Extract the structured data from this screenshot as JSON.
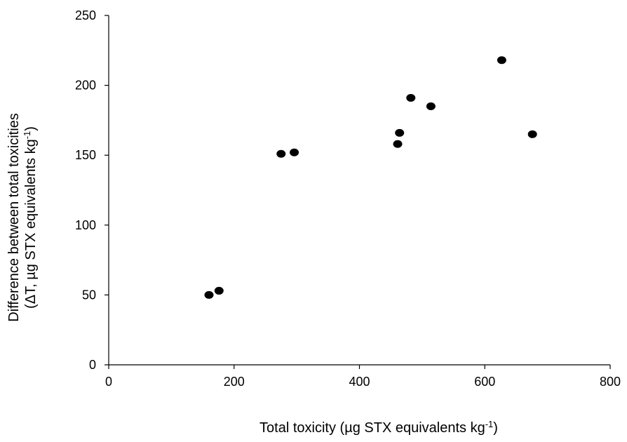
{
  "chart_data": {
    "type": "scatter",
    "xlabel": "Total toxicity  (µg STX equivalents  kg",
    "xlabel_sup": "-1",
    "xlabel_end": ")",
    "ylabel_line1": "Difference between total toxicities",
    "ylabel_line2": "(ΔT,  µg STX equivalents  kg",
    "ylabel_sup": "-1",
    "ylabel_end": ")",
    "xlim": [
      0,
      800
    ],
    "ylim": [
      0,
      250
    ],
    "x_ticks": [
      0,
      200,
      400,
      600,
      800
    ],
    "y_ticks": [
      0,
      50,
      100,
      150,
      200,
      250
    ],
    "grid": false,
    "marker_color": "#000000",
    "points": [
      {
        "x": 160,
        "y": 50
      },
      {
        "x": 176,
        "y": 53
      },
      {
        "x": 275,
        "y": 151
      },
      {
        "x": 296,
        "y": 152
      },
      {
        "x": 461,
        "y": 158
      },
      {
        "x": 464,
        "y": 166
      },
      {
        "x": 482,
        "y": 191
      },
      {
        "x": 514,
        "y": 185
      },
      {
        "x": 627,
        "y": 218
      },
      {
        "x": 676,
        "y": 165
      }
    ]
  }
}
